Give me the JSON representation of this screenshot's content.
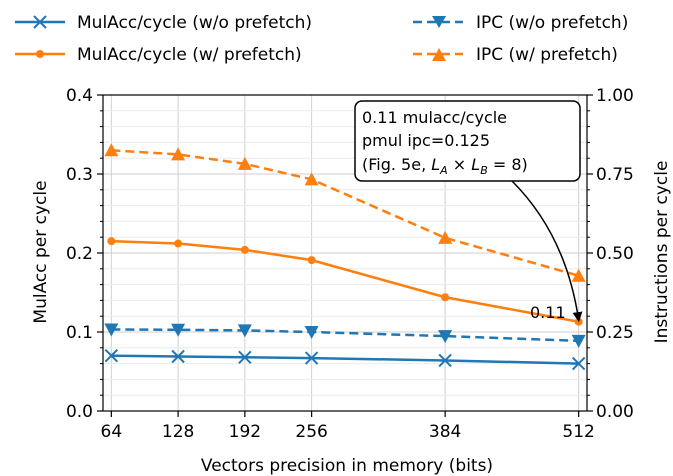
{
  "chart_data": {
    "type": "line",
    "xlabel": "Vectors precision in memory (bits)",
    "ylabel_left": "MulAcc per cycle",
    "ylabel_right": "Instructions per cycle",
    "x": [
      64,
      128,
      192,
      256,
      384,
      512
    ],
    "x_ticks": [
      "64",
      "128",
      "192",
      "256",
      "384",
      "512"
    ],
    "xlim": [
      56,
      520
    ],
    "ylim_left": [
      0.0,
      0.4
    ],
    "ylim_right": [
      0.0,
      1.0
    ],
    "y_ticks_left": [
      "0.0",
      "0.1",
      "0.2",
      "0.3",
      "0.4"
    ],
    "y_ticks_right": [
      "0.00",
      "0.25",
      "0.50",
      "0.75",
      "1.00"
    ],
    "grid": true,
    "legend_position": "top",
    "series": [
      {
        "name": "MulAcc/cycle (w/o prefetch)",
        "axis": "left",
        "color": "#1f77b4",
        "line_style": "solid",
        "marker": "x",
        "values": [
          0.07,
          0.069,
          0.068,
          0.067,
          0.064,
          0.06
        ]
      },
      {
        "name": "MulAcc/cycle (w/  prefetch)",
        "axis": "left",
        "color": "#ff7f0e",
        "line_style": "solid",
        "marker": "dot",
        "values": [
          0.215,
          0.212,
          0.204,
          0.191,
          0.144,
          0.113
        ]
      },
      {
        "name": "IPC (w/o prefetch)",
        "axis": "right",
        "color": "#1f77b4",
        "line_style": "dashed",
        "marker": "triangle-down",
        "values": [
          0.258,
          0.257,
          0.255,
          0.25,
          0.237,
          0.222
        ]
      },
      {
        "name": "IPC (w/  prefetch)",
        "axis": "right",
        "color": "#ff7f0e",
        "line_style": "dashed",
        "marker": "triangle-up",
        "values": [
          0.825,
          0.812,
          0.782,
          0.733,
          0.548,
          0.428
        ]
      }
    ],
    "annotations": {
      "box_line1": "0.11 mulacc/cycle",
      "box_line2": "pmul ipc=0.125",
      "box_line3_prefix": "(Fig. 5e, ",
      "box_line3_LA": "L",
      "box_line3_LA_sub": "A",
      "box_line3_times": " × ",
      "box_line3_LB": "L",
      "box_line3_LB_sub": "B",
      "box_line3_suffix": " = 8)",
      "point_label": "0.11",
      "point_x": 512,
      "point_y": 0.11
    }
  }
}
